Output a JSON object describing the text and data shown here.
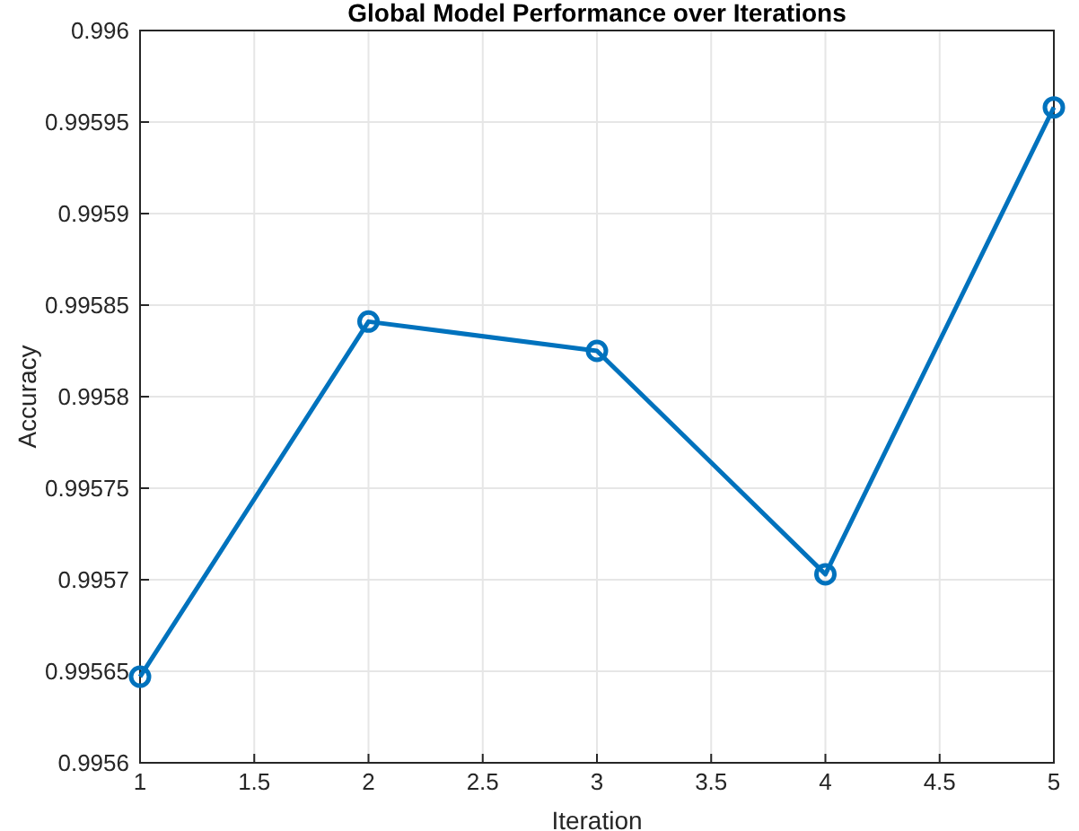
{
  "chart_data": {
    "type": "line",
    "title": "Global Model Performance over Iterations",
    "xlabel": "Iteration",
    "ylabel": "Accuracy",
    "x": [
      1,
      2,
      3,
      4,
      5
    ],
    "series": [
      {
        "color": "#0072bd",
        "values": [
          0.995647,
          0.995841,
          0.995825,
          0.995703,
          0.995958
        ]
      }
    ],
    "xlim": [
      1,
      5
    ],
    "xticks": [
      1,
      1.5,
      2,
      2.5,
      3,
      3.5,
      4,
      4.5,
      5
    ],
    "ylim": [
      0.9956,
      0.996
    ],
    "yticks": [
      0.9956,
      0.99565,
      0.9957,
      0.99575,
      0.9958,
      0.99585,
      0.9959,
      0.99595,
      0.996
    ],
    "grid": true,
    "marker": "circle",
    "line_style": "solid"
  }
}
